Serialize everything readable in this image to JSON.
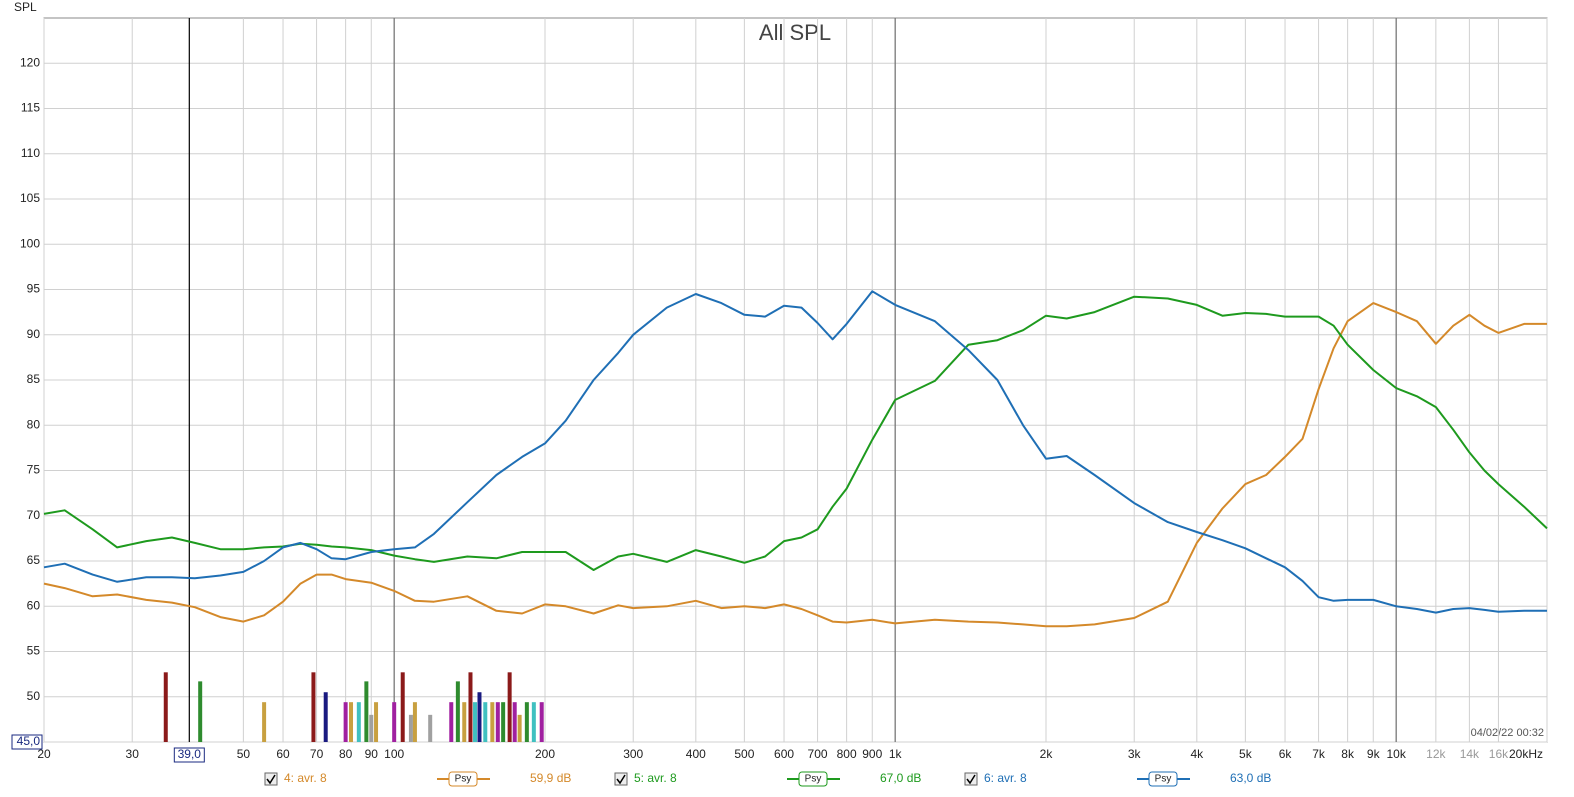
{
  "chart_data": {
    "type": "line",
    "title": "All SPL",
    "y_label": "SPL",
    "timestamp": "04/02/22 00:32",
    "x_scale": "log",
    "grid": true,
    "xlim": [
      20,
      20000
    ],
    "ylim": [
      45,
      125
    ],
    "yticks": [
      {
        "value": 45,
        "label": "45,0"
      },
      50,
      55,
      60,
      65,
      70,
      75,
      80,
      85,
      90,
      95,
      100,
      105,
      110,
      115,
      120
    ],
    "xticks": [
      20,
      30,
      50,
      60,
      70,
      80,
      90,
      100,
      200,
      300,
      400,
      500,
      600,
      700,
      800,
      900,
      {
        "value": 1000,
        "label": "1k"
      },
      {
        "value": 2000,
        "label": "2k"
      },
      {
        "value": 3000,
        "label": "3k"
      },
      {
        "value": 4000,
        "label": "4k"
      },
      {
        "value": 5000,
        "label": "5k"
      },
      {
        "value": 6000,
        "label": "6k"
      },
      {
        "value": 7000,
        "label": "7k"
      },
      {
        "value": 8000,
        "label": "8k"
      },
      {
        "value": 9000,
        "label": "9k"
      },
      {
        "value": 10000,
        "label": "10k"
      },
      {
        "value": 12000,
        "label": "12k"
      },
      {
        "value": 14000,
        "label": "14k"
      },
      {
        "value": 16000,
        "label": "16k"
      },
      {
        "value": 20000,
        "label": "20kHz"
      }
    ],
    "cursor": {
      "value": 39,
      "label": "39,0"
    },
    "x": [
      20,
      22,
      25,
      28,
      32,
      36,
      40,
      45,
      50,
      55,
      60,
      65,
      70,
      75,
      80,
      90,
      100,
      110,
      120,
      140,
      160,
      180,
      200,
      220,
      250,
      280,
      300,
      350,
      400,
      450,
      500,
      550,
      600,
      650,
      700,
      750,
      800,
      900,
      1000,
      1200,
      1400,
      1600,
      1800,
      2000,
      2200,
      2500,
      3000,
      3500,
      4000,
      4500,
      5000,
      5500,
      6000,
      6500,
      7000,
      7500,
      8000,
      9000,
      10000,
      11000,
      12000,
      13000,
      14000,
      15000,
      16000,
      18000,
      20000
    ],
    "series": [
      {
        "name": "4: avr. 8",
        "color": "#d4892a",
        "smoothing": "Psy",
        "cursor_value": 59.9,
        "cursor_label": "59,9 dB",
        "values": [
          62.5,
          62.0,
          61.1,
          61.3,
          60.7,
          60.4,
          59.9,
          58.8,
          58.3,
          59.0,
          60.5,
          62.5,
          63.5,
          63.5,
          63.0,
          62.6,
          61.7,
          60.6,
          60.5,
          61.1,
          59.5,
          59.2,
          60.2,
          60.0,
          59.2,
          60.1,
          59.8,
          60.0,
          60.6,
          59.8,
          60.0,
          59.8,
          60.2,
          59.7,
          59.0,
          58.3,
          58.2,
          58.5,
          58.1,
          58.5,
          58.3,
          58.2,
          58.0,
          57.8,
          57.8,
          58.0,
          58.7,
          60.5,
          67.0,
          70.8,
          73.5,
          74.5,
          76.5,
          78.5,
          84.0,
          88.5,
          91.5,
          93.5,
          92.5,
          91.5,
          89.0,
          91.0,
          92.2,
          91.0,
          90.2,
          91.2,
          91.2
        ]
      },
      {
        "name": "5: avr. 8",
        "color": "#1e9a1e",
        "smoothing": "Psy",
        "cursor_value": 67.0,
        "cursor_label": "67,0 dB",
        "values": [
          70.2,
          70.6,
          68.5,
          66.5,
          67.2,
          67.6,
          67.0,
          66.3,
          66.3,
          66.5,
          66.6,
          66.9,
          66.8,
          66.6,
          66.5,
          66.2,
          65.6,
          65.2,
          64.9,
          65.5,
          65.3,
          66.0,
          66.0,
          66.0,
          64.0,
          65.5,
          65.8,
          64.9,
          66.2,
          65.5,
          64.8,
          65.5,
          67.2,
          67.6,
          68.5,
          71.0,
          73.0,
          78.4,
          82.8,
          84.9,
          88.9,
          89.4,
          90.5,
          92.1,
          91.8,
          92.5,
          94.2,
          94.0,
          93.3,
          92.1,
          92.4,
          92.3,
          92.0,
          92.0,
          92.0,
          91.0,
          88.9,
          86.1,
          84.1,
          83.2,
          82.0,
          79.5,
          77.0,
          75.0,
          73.5,
          71.0,
          68.6
        ]
      },
      {
        "name": "6: avr. 8",
        "color": "#1f6fb5",
        "smoothing": "Psy",
        "cursor_value": 63.0,
        "cursor_label": "63,0 dB",
        "values": [
          64.3,
          64.7,
          63.5,
          62.7,
          63.2,
          63.2,
          63.1,
          63.4,
          63.8,
          65.0,
          66.5,
          67.0,
          66.3,
          65.3,
          65.2,
          66.0,
          66.3,
          66.5,
          68.0,
          71.5,
          74.5,
          76.5,
          78.0,
          80.5,
          85.0,
          88.0,
          90.0,
          93.0,
          94.5,
          93.5,
          92.2,
          92.0,
          93.2,
          93.0,
          91.3,
          89.5,
          91.2,
          94.8,
          93.3,
          91.5,
          88.3,
          85.0,
          80.0,
          76.3,
          76.6,
          74.5,
          71.4,
          69.3,
          68.2,
          67.3,
          66.4,
          65.3,
          64.3,
          62.8,
          61.0,
          60.6,
          60.7,
          60.7,
          60.0,
          59.7,
          59.3,
          59.7,
          59.8,
          59.6,
          59.4,
          59.5,
          59.5
        ]
      }
    ],
    "peaks": {
      "x": [
        35,
        41,
        55,
        69,
        73,
        80,
        82,
        85,
        88,
        90,
        92,
        100,
        104,
        108,
        110,
        118,
        130,
        134,
        138,
        142,
        145,
        148,
        152,
        157,
        161,
        165,
        170,
        174,
        178,
        184,
        190,
        197
      ],
      "values": [
        52.7,
        51.7,
        49.4,
        52.7,
        50.5,
        49.4,
        49.4,
        49.4,
        51.7,
        48,
        49.4,
        49.4,
        52.7,
        48,
        49.4,
        48,
        49.4,
        51.7,
        49.4,
        52.7,
        49.4,
        50.5,
        49.4,
        49.4,
        49.4,
        49.4,
        52.7,
        49.4,
        48,
        49.4,
        49.4,
        49.4
      ],
      "colors": [
        "#8b1a1a",
        "#2e8b2e",
        "#c8a040",
        "#8b1a1a",
        "#1a1a80",
        "#a020a0",
        "#c8a040",
        "#40c0c0",
        "#2e8b2e",
        "#a0a0a0",
        "#c8a040",
        "#a020a0",
        "#8b1a1a",
        "#a0a0a0",
        "#c8a040",
        "#a0a0a0",
        "#a020a0",
        "#2e8b2e",
        "#c8a040",
        "#8b1a1a",
        "#40c0c0",
        "#1a1a80",
        "#40c0c0",
        "#c8a040",
        "#a020a0",
        "#2e8b2e",
        "#8b1a1a",
        "#a020a0",
        "#c8a040",
        "#2e8b2e",
        "#40c0c0",
        "#a020a0"
      ]
    }
  }
}
